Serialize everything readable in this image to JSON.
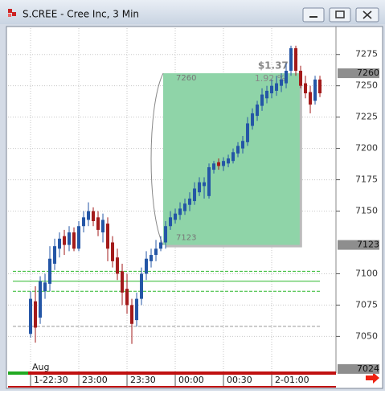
{
  "window_title": "S.CREE - Cree Inc, 3 Min",
  "chart_data": {
    "type": "candlestick",
    "ylim": [
      7022,
      7296
    ],
    "yticks": [
      7275,
      7250,
      7225,
      7200,
      7175,
      7150,
      7100,
      7075,
      7050
    ],
    "xlim": [
      -4.67,
      63.33
    ],
    "xticks": [
      {
        "value": 0,
        "label": "1-22:30"
      },
      {
        "value": 10,
        "label": "23:00"
      },
      {
        "value": 20,
        "label": "23:30"
      },
      {
        "value": 30,
        "label": "00:00"
      },
      {
        "value": 40,
        "label": "00:30"
      },
      {
        "value": 50,
        "label": "2-01:00"
      }
    ],
    "period_label": "Aug",
    "up_color": "#2456a6",
    "down_color": "#a31a1a",
    "open": [
      7052,
      7078,
      7065,
      7086,
      7092,
      7108,
      7120,
      7130,
      7123,
      7133,
      7120,
      7138,
      7143,
      7150,
      7145,
      7133,
      7140,
      7125,
      7113,
      7102,
      7088,
      7075,
      7063,
      7080,
      7100,
      7110,
      7115,
      7120,
      7125,
      7138,
      7143,
      7147,
      7150,
      7155,
      7158,
      7165,
      7170,
      7162,
      7183,
      7189,
      7186,
      7188,
      7190,
      7196,
      7200,
      7205,
      7218,
      7226,
      7234,
      7240,
      7244,
      7246,
      7250,
      7252,
      7262,
      7280,
      7262,
      7252,
      7245,
      7238,
      7255
    ],
    "high": [
      7086,
      7090,
      7098,
      7100,
      7122,
      7128,
      7133,
      7135,
      7138,
      7137,
      7142,
      7150,
      7157,
      7153,
      7150,
      7148,
      7145,
      7130,
      7120,
      7108,
      7100,
      7080,
      7085,
      7105,
      7118,
      7120,
      7127,
      7130,
      7142,
      7150,
      7152,
      7157,
      7160,
      7165,
      7173,
      7177,
      7177,
      7188,
      7190,
      7192,
      7193,
      7195,
      7200,
      7205,
      7210,
      7225,
      7232,
      7238,
      7248,
      7250,
      7255,
      7258,
      7260,
      7268,
      7282,
      7282,
      7266,
      7258,
      7250,
      7258,
      7258
    ],
    "low": [
      7049,
      7045,
      7060,
      7080,
      7086,
      7103,
      7113,
      7115,
      7118,
      7118,
      7118,
      7133,
      7138,
      7138,
      7130,
      7125,
      7110,
      7105,
      7095,
      7075,
      7068,
      7044,
      7058,
      7075,
      7095,
      7105,
      7110,
      7118,
      7120,
      7135,
      7140,
      7143,
      7147,
      7150,
      7155,
      7162,
      7160,
      7160,
      7180,
      7183,
      7182,
      7185,
      7188,
      7193,
      7196,
      7202,
      7215,
      7222,
      7230,
      7236,
      7240,
      7242,
      7245,
      7248,
      7258,
      7258,
      7248,
      7240,
      7228,
      7235,
      7241
    ],
    "close": [
      7080,
      7057,
      7094,
      7093,
      7112,
      7122,
      7128,
      7123,
      7133,
      7120,
      7138,
      7145,
      7150,
      7142,
      7135,
      7143,
      7120,
      7110,
      7100,
      7085,
      7075,
      7060,
      7080,
      7100,
      7112,
      7115,
      7120,
      7125,
      7138,
      7145,
      7148,
      7152,
      7156,
      7160,
      7168,
      7173,
      7173,
      7185,
      7188,
      7186,
      7190,
      7192,
      7197,
      7202,
      7206,
      7220,
      7228,
      7235,
      7243,
      7246,
      7250,
      7252,
      7255,
      7262,
      7280,
      7262,
      7250,
      7244,
      7235,
      7255,
      7244
    ],
    "levels": [
      {
        "value": 7102,
        "color": "#2db82d",
        "dash": true
      },
      {
        "value": 7094,
        "color": "#2db82d",
        "dash": false
      },
      {
        "value": 7086,
        "color": "#2db82d",
        "dash": true
      },
      {
        "value": 7058,
        "color": "#999999",
        "dash": true
      }
    ],
    "measure": {
      "high": 7260,
      "low": 7123,
      "x_range": [
        27.5,
        55.8
      ],
      "color": "#8fd4a8",
      "change_label": "$1.37",
      "percent_label": "1.92 %"
    },
    "price_markers": [
      7260,
      7123,
      7024
    ]
  }
}
